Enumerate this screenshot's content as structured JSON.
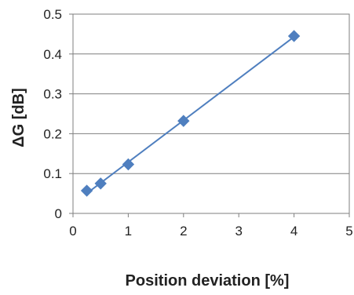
{
  "chart_data": {
    "type": "scatter",
    "title": "",
    "xlabel": "Position deviation [%]",
    "ylabel": "ΔG [dB]",
    "xlim": [
      0,
      5
    ],
    "ylim": [
      0,
      0.5
    ],
    "x_ticks": [
      "0",
      "1",
      "2",
      "3",
      "4",
      "5"
    ],
    "y_ticks": [
      "0",
      "0.1",
      "0.2",
      "0.3",
      "0.4",
      "0.5"
    ],
    "grid": "horizontal",
    "legend": "none",
    "series": [
      {
        "x": [
          0.25,
          0.5,
          1,
          2,
          4
        ],
        "y": [
          0.057,
          0.075,
          0.123,
          0.232,
          0.445
        ],
        "marker": "diamond",
        "color": "#4F7FBF",
        "trendline": "linear"
      }
    ]
  }
}
